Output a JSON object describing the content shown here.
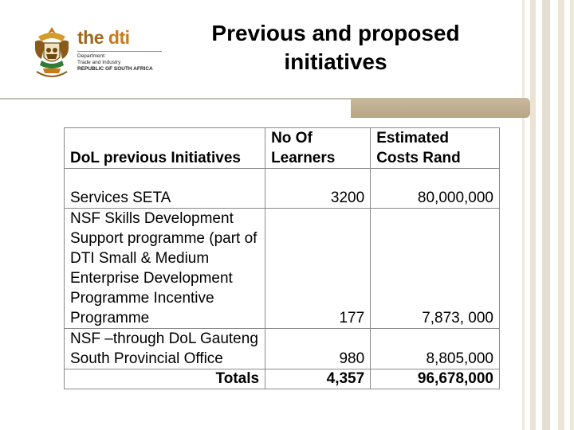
{
  "logo": {
    "brand_the": "the",
    "brand_dti": "dti",
    "dept_line1": "Department:",
    "dept_line2": "Trade and Industry",
    "dept_line3": "REPUBLIC OF SOUTH AFRICA"
  },
  "title": "Previous and proposed initiatives",
  "table": {
    "headers": [
      "DoL previous Initiatives",
      "No Of Learners",
      "Estimated Costs Rand"
    ],
    "rows": [
      {
        "initiative": "Services SETA",
        "learners": "3200",
        "cost": "80,000,000"
      },
      {
        "initiative": "NSF Skills Development Support programme (part of DTI Small & Medium Enterprise Development Programme Incentive Programme",
        "learners": "177",
        "cost": "7,873, 000"
      },
      {
        "initiative": "NSF –through DoL Gauteng South Provincial Office",
        "learners": "980",
        "cost": "8,805,000"
      }
    ],
    "totals": {
      "label": "Totals",
      "learners": "4,357",
      "cost": "96,678,000"
    }
  },
  "colors": {
    "accent": "#c97a1a",
    "divider": "#b8a685",
    "stripes": "#e8e2d2"
  }
}
